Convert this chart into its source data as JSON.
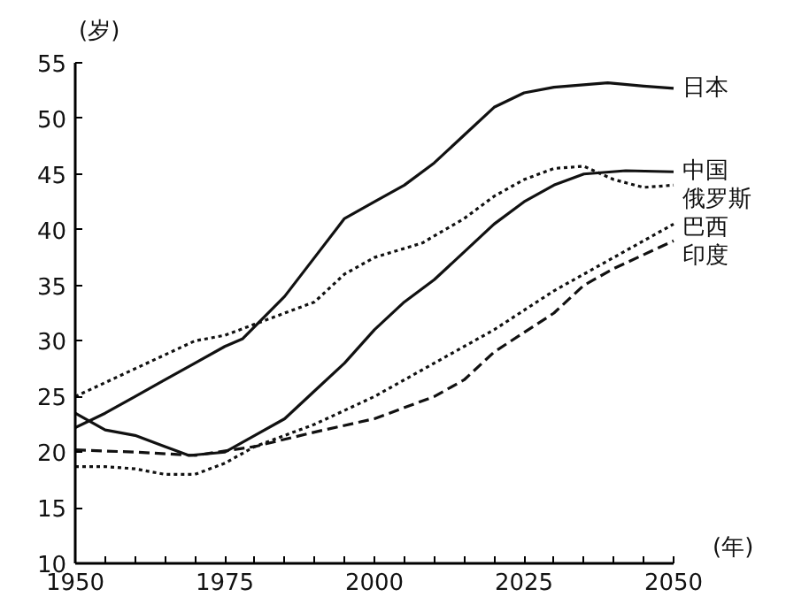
{
  "chart_data": {
    "type": "line",
    "xlabel": "(年)",
    "ylabel": "(岁)",
    "xlim": [
      1950,
      2050
    ],
    "ylim": [
      10,
      55
    ],
    "xticks": [
      1950,
      {
        "value": 1955,
        "label": null
      },
      {
        "value": 1960,
        "label": null
      },
      {
        "value": 1965,
        "label": null
      },
      {
        "value": 1970,
        "label": null
      },
      1975,
      {
        "value": 1980,
        "label": null
      },
      {
        "value": 1985,
        "label": null
      },
      {
        "value": 1990,
        "label": null
      },
      {
        "value": 1995,
        "label": null
      },
      2000,
      {
        "value": 2005,
        "label": null
      },
      {
        "value": 2010,
        "label": null
      },
      {
        "value": 2015,
        "label": null
      },
      {
        "value": 2020,
        "label": null
      },
      2025,
      {
        "value": 2030,
        "label": null
      },
      {
        "value": 2035,
        "label": null
      },
      {
        "value": 2040,
        "label": null
      },
      {
        "value": 2045,
        "label": null
      },
      2050
    ],
    "yticks": [
      10,
      15,
      20,
      25,
      30,
      35,
      40,
      45,
      50,
      55
    ],
    "grid": false,
    "legend": false,
    "marker": "none",
    "series": [
      {
        "name": "日本",
        "color": "#111111",
        "line_style": "solid",
        "x": [
          1950,
          1955,
          1960,
          1965,
          1970,
          1975,
          1978,
          1985,
          1990,
          1995,
          2000,
          2005,
          2010,
          2015,
          2020,
          2025,
          2030,
          2039,
          2045,
          2050
        ],
        "values": [
          22.2,
          23.5,
          25,
          26.5,
          28,
          29.5,
          30.2,
          34,
          37.5,
          41,
          42.5,
          44,
          46,
          48.5,
          51,
          52.3,
          52.8,
          53.2,
          52.9,
          52.7
        ]
      },
      {
        "name": "中国",
        "color": "#111111",
        "line_style": "solid",
        "x": [
          1950,
          1955,
          1960,
          1965,
          1969,
          1975,
          1980,
          1985,
          1990,
          1995,
          2000,
          2005,
          2010,
          2015,
          2020,
          2025,
          2030,
          2035,
          2042,
          2050
        ],
        "values": [
          23.5,
          22,
          21.5,
          20.5,
          19.7,
          20,
          21.5,
          23,
          25.5,
          28,
          31,
          33.5,
          35.5,
          38,
          40.5,
          42.5,
          44,
          45,
          45.3,
          45.2
        ]
      },
      {
        "name": "俄罗斯",
        "color": "#111111",
        "line_style": "dotted",
        "x": [
          1950,
          1960,
          1970,
          1975,
          1980,
          1990,
          1995,
          2000,
          2008,
          2015,
          2020,
          2025,
          2030,
          2035,
          2040,
          2045,
          2050
        ],
        "values": [
          25,
          27.5,
          30,
          30.5,
          31.5,
          33.5,
          36,
          37.5,
          38.8,
          41,
          43,
          44.5,
          45.5,
          45.7,
          44.5,
          43.8,
          44
        ]
      },
      {
        "name": "巴西",
        "color": "#111111",
        "line_style": "dotted",
        "x": [
          1950,
          1955,
          1960,
          1965,
          1970,
          1975,
          1980,
          1990,
          2000,
          2010,
          2020,
          2030,
          2040,
          2050
        ],
        "values": [
          18.7,
          18.7,
          18.5,
          18,
          18,
          19,
          20.5,
          22.5,
          25,
          28,
          31,
          34.5,
          37.5,
          40.5
        ]
      },
      {
        "name": "印度",
        "color": "#111111",
        "line_style": "dashed",
        "x": [
          1950,
          1960,
          1970,
          1980,
          1990,
          2000,
          2010,
          2015,
          2020,
          2030,
          2035,
          2040,
          2050
        ],
        "values": [
          20.2,
          20,
          19.7,
          20.5,
          21.8,
          23,
          25,
          26.5,
          29,
          32.5,
          35,
          36.5,
          39
        ]
      }
    ]
  }
}
